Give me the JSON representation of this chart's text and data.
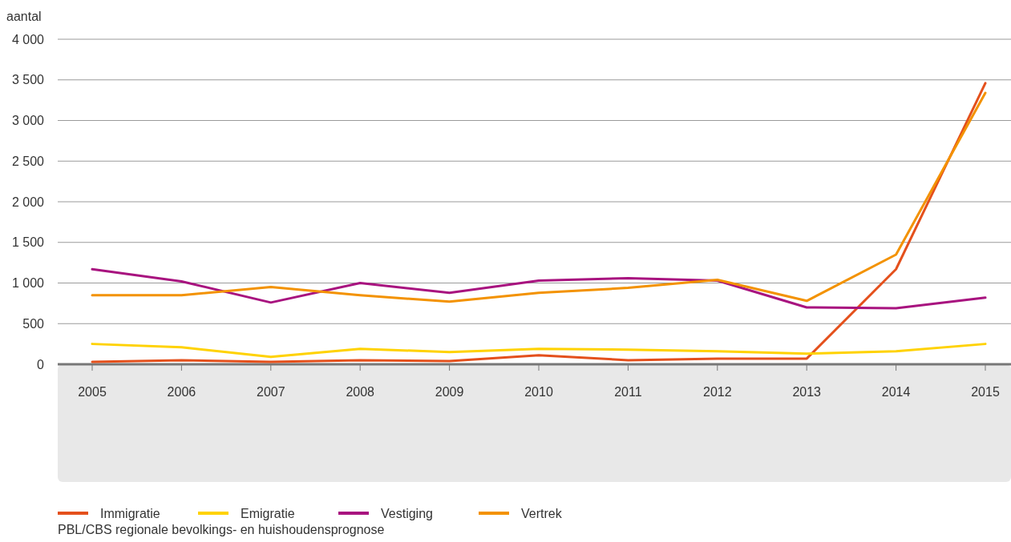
{
  "chart_data": {
    "type": "line",
    "ylabel": "aantal",
    "categories": [
      "2005",
      "2006",
      "2007",
      "2008",
      "2009",
      "2010",
      "2011",
      "2012",
      "2013",
      "2014",
      "2015"
    ],
    "series": [
      {
        "name": "Immigratie",
        "color": "#e4501c",
        "values": [
          30,
          50,
          30,
          50,
          40,
          110,
          50,
          70,
          70,
          1170,
          3460
        ]
      },
      {
        "name": "Emigratie",
        "color": "#ffd200",
        "values": [
          250,
          210,
          90,
          190,
          150,
          190,
          180,
          160,
          130,
          160,
          250
        ]
      },
      {
        "name": "Vestiging",
        "color": "#a8137f",
        "values": [
          1170,
          1020,
          760,
          1000,
          880,
          1030,
          1060,
          1030,
          700,
          690,
          820
        ]
      },
      {
        "name": "Vertrek",
        "color": "#f39200",
        "values": [
          850,
          850,
          950,
          850,
          770,
          880,
          940,
          1040,
          780,
          1350,
          3340
        ]
      }
    ],
    "ylim": [
      0,
      4000
    ],
    "yticks": [
      0,
      500,
      {
        "value": 1000,
        "label": "1 000"
      },
      {
        "value": 1500,
        "label": "1 500"
      },
      {
        "value": 2000,
        "label": "2 000"
      },
      {
        "value": 2500,
        "label": "2 500"
      },
      {
        "value": 3000,
        "label": "3 000"
      },
      {
        "value": 3500,
        "label": "3 500"
      },
      {
        "value": 4000,
        "label": "4 000"
      }
    ],
    "grid": "y",
    "legend": "bottom",
    "marker": "none",
    "line_style": "solid",
    "annotations": [
      "PBL/CBS regionale bevolkings- en huishoudensprognose"
    ]
  }
}
